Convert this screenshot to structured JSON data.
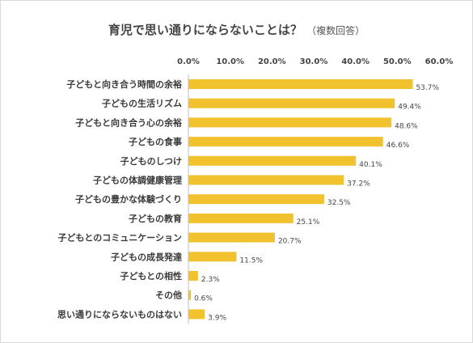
{
  "chart_data": {
    "type": "bar",
    "orientation": "horizontal",
    "title": "育児で思い通りにならないことは？",
    "subtitle": "（複数回答）",
    "categories": [
      "子どもと向き合う時間の余裕",
      "子どもの生活リズム",
      "子どもと向き合う心の余裕",
      "子どもの食事",
      "子どものしつけ",
      "子どもの体調健康管理",
      "子どもの豊かな体験づくり",
      "子どもの教育",
      "子どもとのコミュニケーション",
      "子どもの成長発達",
      "子どもとの相性",
      "その他",
      "思い通りにならないものはない"
    ],
    "values": [
      53.7,
      49.4,
      48.6,
      46.6,
      40.1,
      37.2,
      32.5,
      25.1,
      20.7,
      11.5,
      2.3,
      0.6,
      3.9
    ],
    "value_labels": [
      "53.7%",
      "49.4%",
      "48.6%",
      "46.6%",
      "40.1%",
      "37.2%",
      "32.5%",
      "25.1%",
      "20.7%",
      "11.5%",
      "2.3%",
      "0.6%",
      "3.9%"
    ],
    "ticks": [
      0,
      10,
      20,
      30,
      40,
      50,
      60
    ],
    "tick_labels": [
      "0.0%",
      "10.0%",
      "20.0%",
      "30.0%",
      "40.0%",
      "50.0%",
      "60.0%"
    ],
    "xlim": [
      0,
      60
    ],
    "axis_position": "top",
    "grid": false,
    "bar_color": "#F2C12E"
  }
}
